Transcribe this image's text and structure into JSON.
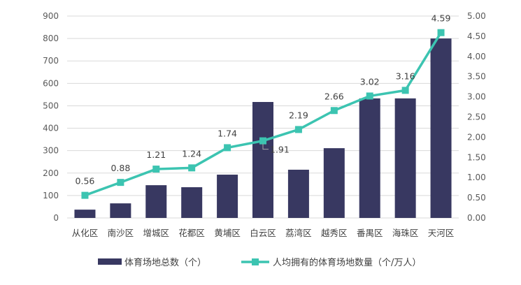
{
  "chart_data": {
    "type": "bar+line",
    "categories": [
      "从化区",
      "南沙区",
      "增城区",
      "花都区",
      "黄埔区",
      "白云区",
      "荔湾区",
      "越秀区",
      "番禺区",
      "海珠区",
      "天河区"
    ],
    "series": [
      {
        "name": "体育场地总数（个）",
        "type": "bar",
        "axis": "left",
        "color": "#383861",
        "values": [
          37,
          65,
          146,
          137,
          193,
          517,
          215,
          311,
          533,
          533,
          800
        ]
      },
      {
        "name": "人均拥有的体育场地数量（个/万人）",
        "type": "line",
        "axis": "right",
        "color": "#3cc4b1",
        "values": [
          0.56,
          0.88,
          1.21,
          1.24,
          1.74,
          1.91,
          2.19,
          2.66,
          3.02,
          3.16,
          4.59
        ],
        "data_labels": [
          "0.56",
          "0.88",
          "1.21",
          "1.24",
          "1.74",
          "1.91",
          "2.19",
          "2.66",
          "3.02",
          "3.16",
          "4.59"
        ]
      }
    ],
    "y_left": {
      "range": [
        0,
        900
      ],
      "ticks": [
        "0",
        "100",
        "200",
        "300",
        "400",
        "500",
        "600",
        "700",
        "800",
        "900"
      ]
    },
    "y_right": {
      "range": [
        0,
        5
      ],
      "ticks": [
        "0.00",
        "0.50",
        "1.00",
        "1.50",
        "2.00",
        "2.50",
        "3.00",
        "3.50",
        "4.00",
        "4.50",
        "5.00"
      ]
    },
    "grid": true,
    "legend": "bottom"
  }
}
